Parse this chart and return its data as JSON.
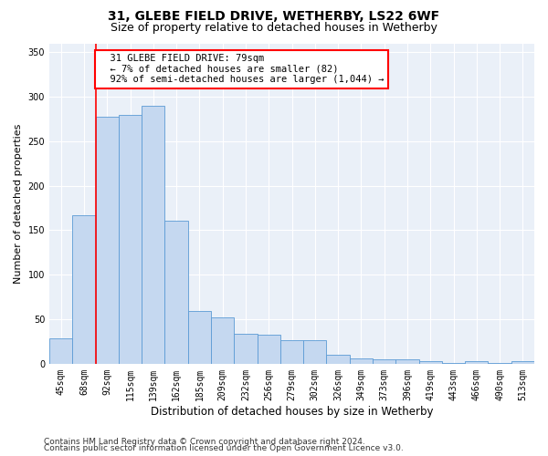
{
  "title1": "31, GLEBE FIELD DRIVE, WETHERBY, LS22 6WF",
  "title2": "Size of property relative to detached houses in Wetherby",
  "xlabel": "Distribution of detached houses by size in Wetherby",
  "ylabel": "Number of detached properties",
  "categories": [
    "45sqm",
    "68sqm",
    "92sqm",
    "115sqm",
    "139sqm",
    "162sqm",
    "185sqm",
    "209sqm",
    "232sqm",
    "256sqm",
    "279sqm",
    "302sqm",
    "326sqm",
    "349sqm",
    "373sqm",
    "396sqm",
    "419sqm",
    "443sqm",
    "466sqm",
    "490sqm",
    "513sqm"
  ],
  "values": [
    29,
    167,
    278,
    280,
    290,
    161,
    59,
    52,
    34,
    33,
    26,
    26,
    10,
    6,
    5,
    5,
    3,
    1,
    3,
    1,
    3
  ],
  "bar_color": "#c5d8f0",
  "bar_edge_color": "#5b9bd5",
  "red_line_x": 1.5,
  "annotation_text": "  31 GLEBE FIELD DRIVE: 79sqm\n  ← 7% of detached houses are smaller (82)\n  92% of semi-detached houses are larger (1,044) →",
  "annotation_box_color": "white",
  "annotation_box_edge_color": "red",
  "red_line_color": "red",
  "footnote1": "Contains HM Land Registry data © Crown copyright and database right 2024.",
  "footnote2": "Contains public sector information licensed under the Open Government Licence v3.0.",
  "ylim": [
    0,
    360
  ],
  "yticks": [
    0,
    50,
    100,
    150,
    200,
    250,
    300,
    350
  ],
  "plot_bg_color": "#eaf0f8",
  "title1_fontsize": 10,
  "title2_fontsize": 9,
  "tick_fontsize": 7,
  "ylabel_fontsize": 8,
  "xlabel_fontsize": 8.5,
  "annotation_fontsize": 7.5,
  "footnote_fontsize": 6.5
}
